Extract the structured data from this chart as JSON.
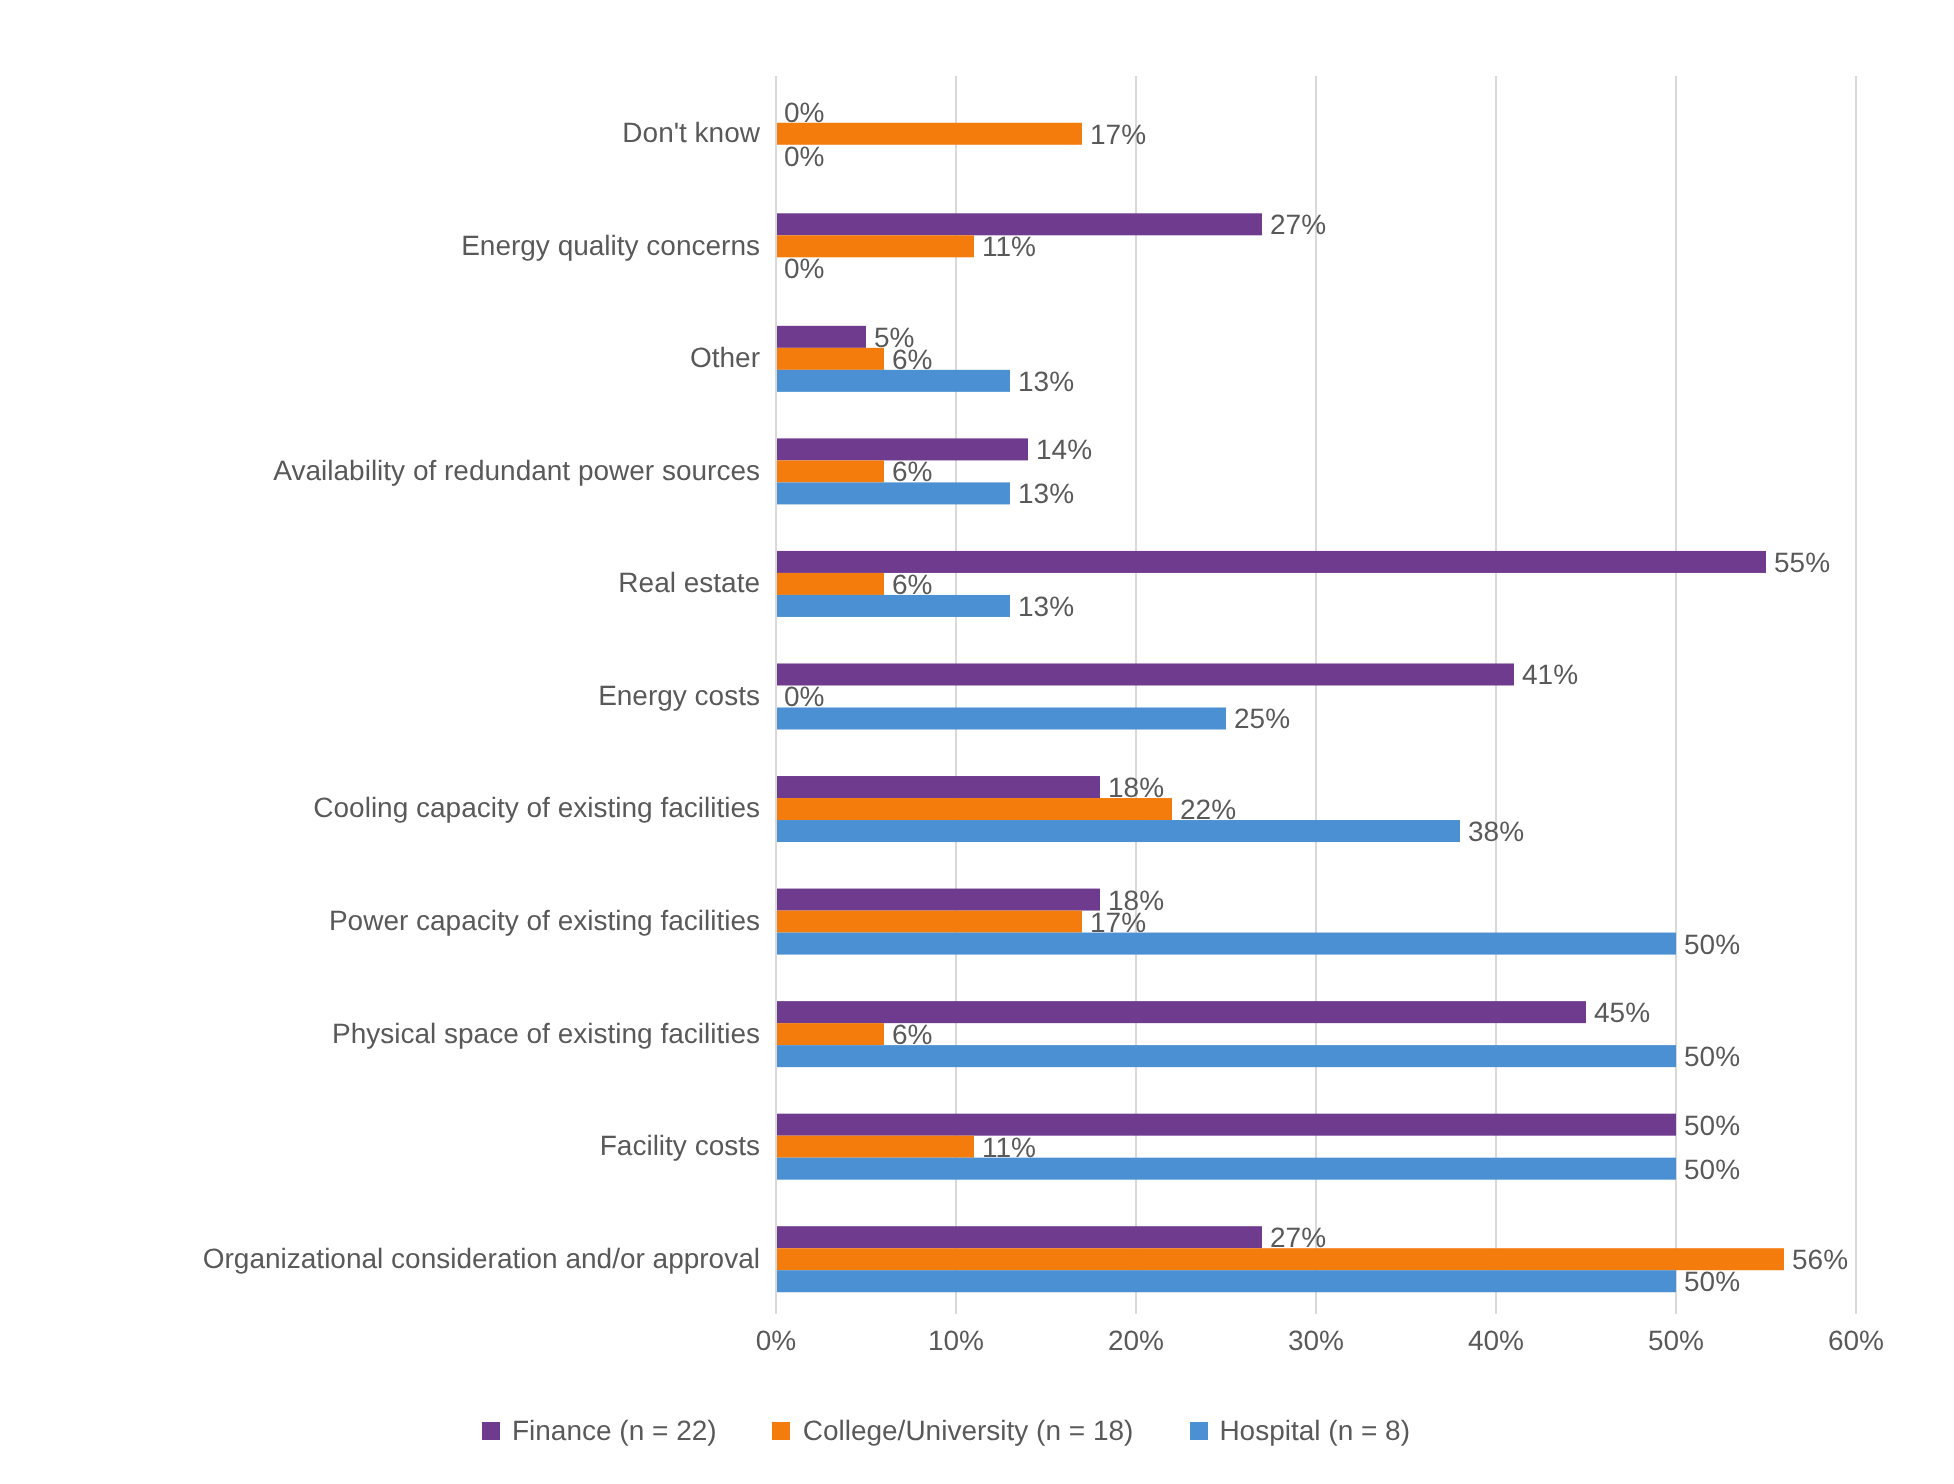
{
  "chart_data": {
    "type": "bar",
    "orientation": "horizontal",
    "categories": [
      "Don't know",
      "Energy quality concerns",
      "Other",
      "Availability of redundant power sources",
      "Real estate",
      "Energy costs",
      "Cooling capacity of existing facilities",
      "Power capacity of existing facilities",
      "Physical space of existing facilities",
      "Facility costs",
      "Organizational consideration and/or approval"
    ],
    "series": [
      {
        "name": "Finance (n = 22)",
        "color": "#6f3b8f",
        "values": [
          0,
          27,
          5,
          14,
          55,
          41,
          18,
          18,
          45,
          50,
          27
        ],
        "value_labels": [
          "0%",
          "27%",
          "5%",
          "14%",
          "55%",
          "41%",
          "18%",
          "18%",
          "45%",
          "50%",
          "27%"
        ]
      },
      {
        "name": "College/University (n = 18)",
        "color": "#f47c0c",
        "values": [
          17,
          11,
          6,
          6,
          6,
          0,
          22,
          17,
          6,
          11,
          56
        ],
        "value_labels": [
          "17%",
          "11%",
          "6%",
          "6%",
          "6%",
          "0%",
          "22%",
          "17%",
          "6%",
          "11%",
          "56%"
        ]
      },
      {
        "name": "Hospital (n = 8)",
        "color": "#4a90d2",
        "values": [
          0,
          0,
          13,
          13,
          13,
          25,
          38,
          50,
          50,
          50,
          50
        ],
        "value_labels": [
          "0%",
          "0%",
          "13%",
          "13%",
          "13%",
          "25%",
          "38%",
          "50%",
          "50%",
          "50%",
          "50%"
        ]
      }
    ],
    "xlim": [
      0,
      60
    ],
    "xticks": [
      {
        "value": 0,
        "label": "0%"
      },
      {
        "value": 10,
        "label": "10%"
      },
      {
        "value": 20,
        "label": "20%"
      },
      {
        "value": 30,
        "label": "30%"
      },
      {
        "value": 40,
        "label": "40%"
      },
      {
        "value": 50,
        "label": "50%"
      },
      {
        "value": 60,
        "label": "60%"
      }
    ],
    "grid": "x",
    "legend": "bottom"
  }
}
